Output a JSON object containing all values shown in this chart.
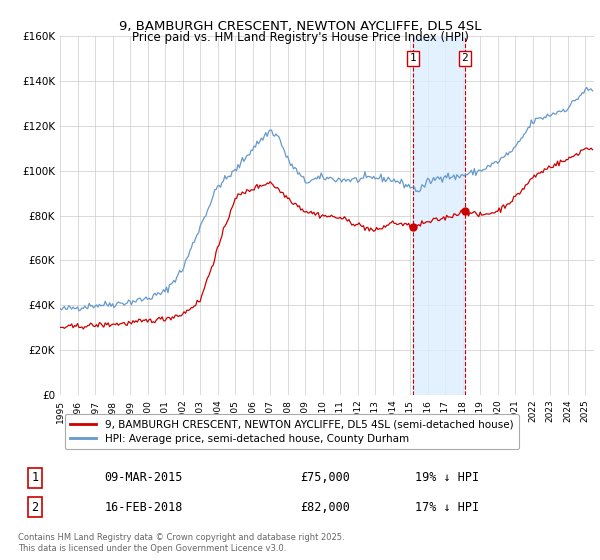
{
  "title": "9, BAMBURGH CRESCENT, NEWTON AYCLIFFE, DL5 4SL",
  "subtitle": "Price paid vs. HM Land Registry's House Price Index (HPI)",
  "legend_red": "9, BAMBURGH CRESCENT, NEWTON AYCLIFFE, DL5 4SL (semi-detached house)",
  "legend_blue": "HPI: Average price, semi-detached house, County Durham",
  "footer": "Contains HM Land Registry data © Crown copyright and database right 2025.\nThis data is licensed under the Open Government Licence v3.0.",
  "transaction1_label": "1",
  "transaction1_date": "09-MAR-2015",
  "transaction1_price": "£75,000",
  "transaction1_hpi": "19% ↓ HPI",
  "transaction2_label": "2",
  "transaction2_date": "16-FEB-2018",
  "transaction2_price": "£82,000",
  "transaction2_hpi": "17% ↓ HPI",
  "vline1_x": 2015.17,
  "vline2_x": 2018.12,
  "marker1_y_red": 75000,
  "marker2_y_red": 82000,
  "ylim": [
    0,
    160000
  ],
  "xlim": [
    1995,
    2025.5
  ],
  "yticks": [
    0,
    20000,
    40000,
    60000,
    80000,
    100000,
    120000,
    140000,
    160000
  ],
  "color_red": "#cc0000",
  "color_blue": "#6699cc",
  "color_background": "#ffffff",
  "color_grid": "#cccccc",
  "color_shading": "#ddeeff"
}
